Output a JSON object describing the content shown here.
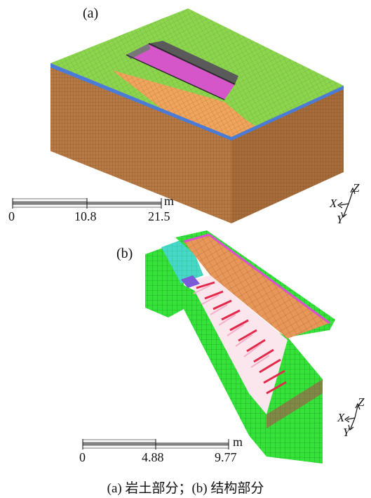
{
  "panel_a": {
    "label": "(a)",
    "scale_bar": {
      "ticks": [
        "0",
        "10.8",
        "21.5"
      ],
      "unit": "m"
    },
    "axes": {
      "z": "Z",
      "x": "X",
      "y": "Y"
    }
  },
  "panel_b": {
    "label": "(b)",
    "scale_bar": {
      "ticks": [
        "0",
        "4.88",
        "9.77"
      ],
      "unit": "m"
    },
    "axes": {
      "z": "Z",
      "x": "X",
      "y": "Y"
    }
  },
  "caption": "(a) 岩土部分；(b) 结构部分",
  "colors": {
    "ground_surface": "#8cd64e",
    "soil_side": "#b77a44",
    "excavation_floor": "#f0a55d",
    "slab_magenta": "#d94fd0",
    "structure_wall": "#35e23a",
    "structure_top": "#e8975a",
    "cyan_block": "#46d8c8",
    "strut_red": "#e2294a",
    "strut_pink": "#f3b0c8",
    "mesh_line": "#555555"
  }
}
